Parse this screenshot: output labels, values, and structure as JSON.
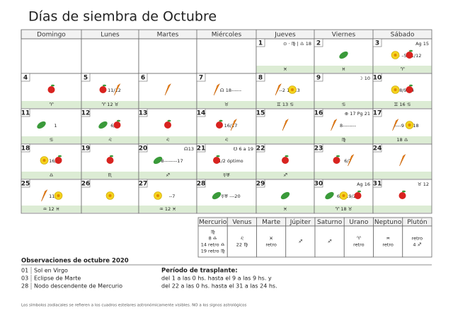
{
  "title": "Días de siembra de Octubre",
  "weekdays": [
    "Domingo",
    "Lunes",
    "Martes",
    "Miércoles",
    "Jueves",
    "Viernes",
    "Sábado"
  ],
  "days": [
    {
      "num": "1",
      "top": "⊙ · ♍ | ♎ 18",
      "sign": "♓"
    },
    {
      "num": "2",
      "sign": "♓"
    },
    {
      "num": "3",
      "top": "Ag 15",
      "mid": "23– –5 11/12",
      "sign": "♈"
    },
    {
      "num": "4",
      "red": true,
      "sign": "♈"
    },
    {
      "num": "5",
      "mid": "11/12",
      "sign": "♈ 12 ♉"
    },
    {
      "num": "6"
    },
    {
      "num": "7",
      "mid": "☊ 18------",
      "sign": "♉"
    },
    {
      "num": "8",
      "mid": "--2 12/13",
      "sign": "♊ 13 ♋"
    },
    {
      "num": "9",
      "top": "☽ 10",
      "sign": "♋"
    },
    {
      "num": "10",
      "mid": "8/9 24",
      "sign": "♊ 16 ♋"
    },
    {
      "num": "11",
      "red": true,
      "mid": "1",
      "sign": "♋"
    },
    {
      "num": "12",
      "red": true,
      "mid": "6/7",
      "sign": "♌"
    },
    {
      "num": "13",
      "sign": "♌"
    },
    {
      "num": "14",
      "mid": "16/17",
      "sign": "♌"
    },
    {
      "num": "15"
    },
    {
      "num": "16",
      "top": "⊕ 17 Pg 21",
      "mid": "8--------",
      "sign": "♍"
    },
    {
      "num": "17",
      "mid": "----9 17/18",
      "sign": "18 ♎"
    },
    {
      "num": "18",
      "red": true,
      "mid": "16/17",
      "sign": "♎"
    },
    {
      "num": "19",
      "sign": "♏"
    },
    {
      "num": "20",
      "top": "☊13",
      "mid": "8--------17",
      "sign": "♐"
    },
    {
      "num": "21",
      "top": "☋ 6 a 19",
      "mid": "1/2 óptimo",
      "sign": "☿♅"
    },
    {
      "num": "22",
      "sign": "♐"
    },
    {
      "num": "23",
      "mid": "6/7"
    },
    {
      "num": "24"
    },
    {
      "num": "25",
      "red": true,
      "mid": "11/12",
      "sign": "♒ 12 ♓"
    },
    {
      "num": "26"
    },
    {
      "num": "27",
      "mid": "--7",
      "sign": "♒ 12 ♓"
    },
    {
      "num": "28",
      "mid": "☿♅ ---20"
    },
    {
      "num": "29",
      "sign": "♓"
    },
    {
      "num": "30",
      "top": "Ag 16",
      "mid": "6/7 19/20",
      "sign": "♈ 18 ♉"
    },
    {
      "num": "31",
      "top": "♉ 12"
    }
  ],
  "planets": [
    {
      "name": "Mercurio",
      "lines": [
        "♍",
        "8 ♎",
        "14 retro ♎",
        "19 retro ♍"
      ]
    },
    {
      "name": "Venus",
      "lines": [
        "♌",
        "22 ♍"
      ]
    },
    {
      "name": "Marte",
      "lines": [
        "♓",
        "retro"
      ]
    },
    {
      "name": "Júpiter",
      "lines": [
        "♐"
      ]
    },
    {
      "name": "Saturno",
      "lines": [
        "♐"
      ]
    },
    {
      "name": "Urano",
      "lines": [
        "♈",
        "retro"
      ]
    },
    {
      "name": "Neptuno",
      "lines": [
        "♒",
        "retro"
      ]
    },
    {
      "name": "Plutón",
      "lines": [
        "retro",
        "4 ♐"
      ]
    }
  ],
  "observations": {
    "title": "Observaciones de octubre 2020",
    "rows": [
      [
        "01",
        "Sol en Virgo"
      ],
      [
        "03",
        "Eclipse de Marte"
      ],
      [
        "28",
        "Nodo descendente de Mercurio"
      ]
    ]
  },
  "transplant": {
    "title": "Período de trasplante:",
    "lines": [
      "del 1 a las 0 hs. hasta el 9 a las 9 hs. y",
      "del 22 a las 0 hs. hasta el 31 a las 24 hs."
    ]
  },
  "footer": "Los símbolos zodiacales se refieren a los cuadros estelares astronómicamente visibles. NO a los signos astrológicos"
}
